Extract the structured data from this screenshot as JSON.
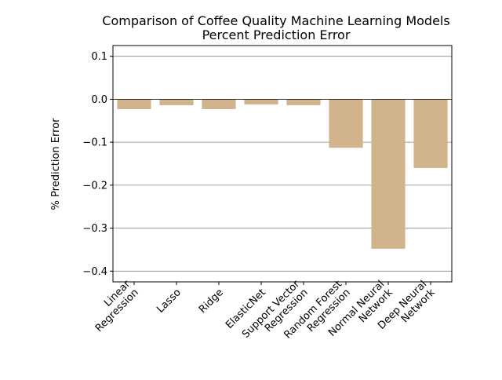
{
  "chart_data": {
    "type": "bar",
    "title": "Comparison of Coffee Quality Machine Learning Models",
    "subtitle": "Percent Prediction Error",
    "xlabel": "",
    "ylabel": "% Prediction Error",
    "categories": [
      [
        "Linear",
        "Regression"
      ],
      [
        "Lasso"
      ],
      [
        "Ridge"
      ],
      [
        "ElasticNet"
      ],
      [
        "Support Vector",
        "Regression"
      ],
      [
        "Random Forest",
        "Regression"
      ],
      [
        "Normal Neural",
        "Network"
      ],
      [
        "Deep Neural",
        "Network"
      ]
    ],
    "values": [
      -0.023,
      -0.014,
      -0.023,
      -0.012,
      -0.014,
      -0.113,
      -0.348,
      -0.16
    ],
    "ylim": [
      -0.425,
      0.125
    ],
    "yticks": [
      0.1,
      0.0,
      -0.1,
      -0.2,
      -0.3,
      -0.4
    ],
    "ytick_labels": [
      "0.1",
      "0.0",
      "−0.1",
      "−0.2",
      "−0.3",
      "−0.4"
    ],
    "grid": "horizontal",
    "bar_color": "#d2b48c",
    "grid_color": "#808080"
  }
}
